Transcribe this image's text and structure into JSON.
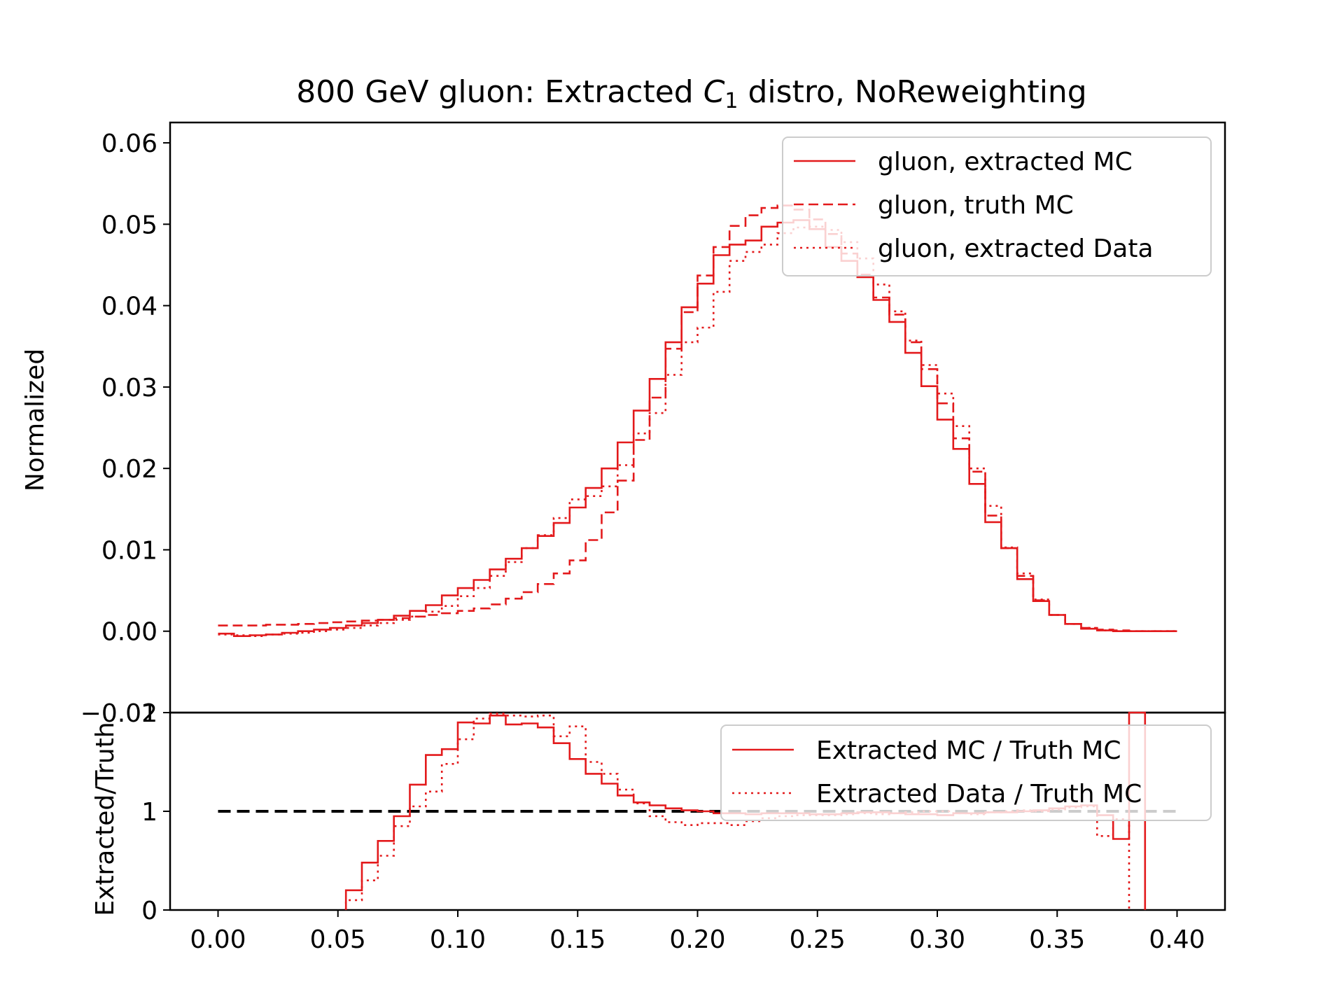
{
  "title_main": "800 GeV gluon: Extracted ",
  "title_var": "C",
  "title_sub": "1",
  "title_tail": " distro, NoReweighting",
  "colors": {
    "series": "#e31a1c",
    "reference": "#000000",
    "axes": "#000000"
  },
  "chart_data": [
    {
      "type": "line",
      "panel": "top",
      "ylabel": "Normalized",
      "xlim": [
        -0.02,
        0.42
      ],
      "ylim": [
        -0.01,
        0.0625
      ],
      "yticks": [
        "0.06",
        "0.05",
        "0.04",
        "0.03",
        "0.02",
        "0.01",
        "0.00",
        "−0.01"
      ],
      "ytick_values": [
        0.06,
        0.05,
        0.04,
        0.03,
        0.02,
        0.01,
        0.0,
        -0.01
      ],
      "grid": false,
      "legend_position": "top-right",
      "x_edges": [
        0.0,
        0.00667,
        0.01333,
        0.02,
        0.02667,
        0.03333,
        0.04,
        0.04667,
        0.05333,
        0.06,
        0.06667,
        0.07333,
        0.08,
        0.08667,
        0.09333,
        0.1,
        0.10667,
        0.11333,
        0.12,
        0.12667,
        0.13333,
        0.14,
        0.14667,
        0.15333,
        0.16,
        0.16667,
        0.17333,
        0.18,
        0.18667,
        0.19333,
        0.2,
        0.20667,
        0.21333,
        0.22,
        0.22667,
        0.23333,
        0.24,
        0.24667,
        0.25333,
        0.26,
        0.26667,
        0.27333,
        0.28,
        0.28667,
        0.29333,
        0.3,
        0.30667,
        0.31333,
        0.32,
        0.32667,
        0.33333,
        0.34,
        0.34667,
        0.35333,
        0.36,
        0.36667,
        0.37333,
        0.38,
        0.38667,
        0.39333,
        0.4
      ],
      "series": [
        {
          "name": "gluon, extracted MC",
          "style": "solid",
          "values": [
            -0.0003,
            -0.0006,
            -0.0005,
            -0.0004,
            -0.0002,
            0.0,
            0.0002,
            0.0004,
            0.0007,
            0.001,
            0.0014,
            0.0019,
            0.0025,
            0.0032,
            0.0044,
            0.0053,
            0.0063,
            0.0076,
            0.0089,
            0.0102,
            0.0117,
            0.0133,
            0.0152,
            0.0176,
            0.02,
            0.0232,
            0.0271,
            0.031,
            0.0355,
            0.0398,
            0.0427,
            0.0462,
            0.0475,
            0.048,
            0.0497,
            0.0502,
            0.0505,
            0.0494,
            0.0472,
            0.0455,
            0.0435,
            0.0407,
            0.038,
            0.0342,
            0.0301,
            0.026,
            0.0224,
            0.0181,
            0.0134,
            0.0102,
            0.0064,
            0.0037,
            0.002,
            0.0009,
            0.0003,
            0.0001,
            0.0,
            0.0,
            0.0,
            0.0
          ]
        },
        {
          "name": "gluon, truth MC",
          "style": "dashed",
          "values": [
            0.0007,
            0.0007,
            0.0007,
            0.0008,
            0.0008,
            0.0009,
            0.001,
            0.0011,
            0.0012,
            0.0013,
            0.0014,
            0.0016,
            0.0018,
            0.002,
            0.0022,
            0.0025,
            0.0028,
            0.0033,
            0.004,
            0.0048,
            0.0058,
            0.0071,
            0.0087,
            0.0112,
            0.0146,
            0.0185,
            0.0235,
            0.0287,
            0.0347,
            0.0392,
            0.0437,
            0.0472,
            0.0498,
            0.0511,
            0.052,
            0.0523,
            0.0518,
            0.0506,
            0.0488,
            0.0464,
            0.0438,
            0.041,
            0.0389,
            0.0355,
            0.0322,
            0.028,
            0.0237,
            0.0196,
            0.0142,
            0.0102,
            0.0068,
            0.0038,
            0.002,
            0.0009,
            0.0004,
            0.0002,
            0.0001,
            0.0,
            0.0,
            0.0
          ]
        },
        {
          "name": "gluon, extracted Data",
          "style": "dotted",
          "values": [
            -0.0004,
            -0.0005,
            -0.0006,
            -0.0004,
            -0.0003,
            -0.0002,
            0.0,
            0.0002,
            0.0004,
            0.0007,
            0.001,
            0.0014,
            0.0018,
            0.0024,
            0.0031,
            0.0043,
            0.0053,
            0.0068,
            0.0085,
            0.0102,
            0.0118,
            0.0139,
            0.0162,
            0.0166,
            0.0178,
            0.0204,
            0.0243,
            0.0268,
            0.0315,
            0.0355,
            0.0373,
            0.0417,
            0.0455,
            0.0466,
            0.0475,
            0.0489,
            0.0496,
            0.0497,
            0.0493,
            0.0478,
            0.0458,
            0.0426,
            0.0393,
            0.0357,
            0.0327,
            0.0292,
            0.0252,
            0.02,
            0.0154,
            0.0103,
            0.0071,
            0.0039,
            0.002,
            0.0009,
            0.0004,
            0.0001,
            0.0,
            0.0,
            0.0,
            0.0
          ]
        }
      ]
    },
    {
      "type": "line",
      "panel": "bottom",
      "ylabel": "Extracted/Truth",
      "xlim": [
        -0.02,
        0.42
      ],
      "ylim": [
        0,
        2
      ],
      "yticks": [
        "2",
        "1",
        "0"
      ],
      "ytick_values": [
        2,
        1,
        0
      ],
      "xticks": [
        "0.00",
        "0.05",
        "0.10",
        "0.15",
        "0.20",
        "0.25",
        "0.30",
        "0.35",
        "0.40"
      ],
      "xtick_values": [
        0.0,
        0.05,
        0.1,
        0.15,
        0.2,
        0.25,
        0.3,
        0.35,
        0.4
      ],
      "grid": false,
      "legend_position": "top-right",
      "reference_line": {
        "y": 1,
        "x_range": [
          0.0,
          0.4
        ],
        "style": "dashed"
      },
      "x_edges": [
        0.0,
        0.00667,
        0.01333,
        0.02,
        0.02667,
        0.03333,
        0.04,
        0.04667,
        0.05333,
        0.06,
        0.06667,
        0.07333,
        0.08,
        0.08667,
        0.09333,
        0.1,
        0.10667,
        0.11333,
        0.12,
        0.12667,
        0.13333,
        0.14,
        0.14667,
        0.15333,
        0.16,
        0.16667,
        0.17333,
        0.18,
        0.18667,
        0.19333,
        0.2,
        0.20667,
        0.21333,
        0.22,
        0.22667,
        0.23333,
        0.24,
        0.24667,
        0.25333,
        0.26,
        0.26667,
        0.27333,
        0.28,
        0.28667,
        0.29333,
        0.3,
        0.30667,
        0.31333,
        0.32,
        0.32667,
        0.33333,
        0.34,
        0.34667,
        0.35333,
        0.36,
        0.36667,
        0.37333,
        0.38,
        0.38667,
        0.39333,
        0.4
      ],
      "series": [
        {
          "name": "Extracted MC / Truth MC",
          "style": "solid",
          "start_x": 0.05333,
          "end_x": 0.38667,
          "x": [
            0.05333,
            0.06,
            0.06667,
            0.07333,
            0.08,
            0.08667,
            0.09333,
            0.1,
            0.10667,
            0.11333,
            0.12,
            0.12667,
            0.13333,
            0.14,
            0.14667,
            0.15333,
            0.16,
            0.16667,
            0.17333,
            0.18,
            0.18667,
            0.19333,
            0.2,
            0.20667,
            0.21333,
            0.22,
            0.22667,
            0.23333,
            0.24,
            0.24667,
            0.25333,
            0.26,
            0.26667,
            0.27333,
            0.28,
            0.28667,
            0.29333,
            0.3,
            0.30667,
            0.31333,
            0.32,
            0.32667,
            0.33333,
            0.34,
            0.34667,
            0.35333,
            0.36,
            0.36667,
            0.37333,
            0.38
          ],
          "values": [
            0.2,
            0.48,
            0.7,
            0.95,
            1.27,
            1.57,
            1.63,
            1.9,
            1.89,
            1.97,
            1.88,
            1.89,
            1.85,
            1.69,
            1.53,
            1.38,
            1.28,
            1.16,
            1.09,
            1.06,
            1.03,
            1.01,
            1.0,
            0.98,
            0.98,
            0.97,
            0.98,
            0.98,
            0.98,
            0.97,
            0.97,
            0.98,
            0.99,
            0.99,
            0.98,
            0.97,
            0.97,
            0.96,
            0.98,
            0.98,
            0.99,
            0.99,
            1.0,
            1.01,
            1.03,
            1.05,
            1.06,
            0.96,
            0.72,
            2.0
          ]
        },
        {
          "name": "Extracted Data / Truth MC",
          "style": "dotted",
          "start_x": 0.05333,
          "end_x": 0.38,
          "x": [
            0.05333,
            0.06,
            0.06667,
            0.07333,
            0.08,
            0.08667,
            0.09333,
            0.1,
            0.10667,
            0.11333,
            0.12,
            0.12667,
            0.13333,
            0.14,
            0.14667,
            0.15333,
            0.16,
            0.16667,
            0.17333,
            0.18,
            0.18667,
            0.19333,
            0.2,
            0.20667,
            0.21333,
            0.22,
            0.22667,
            0.23333,
            0.24,
            0.24667,
            0.25333,
            0.26,
            0.26667,
            0.27333,
            0.28,
            0.28667,
            0.29333,
            0.3,
            0.30667,
            0.31333,
            0.32,
            0.32667,
            0.33333,
            0.34,
            0.34667,
            0.35333,
            0.36,
            0.36667,
            0.37333
          ],
          "values": [
            0.1,
            0.3,
            0.55,
            0.85,
            1.05,
            1.2,
            1.48,
            1.73,
            1.94,
            1.99,
            1.97,
            1.96,
            1.97,
            1.76,
            1.86,
            1.5,
            1.38,
            1.22,
            1.08,
            0.95,
            0.89,
            0.86,
            0.88,
            0.88,
            0.86,
            0.9,
            0.93,
            0.95,
            0.96,
            0.96,
            0.96,
            0.97,
            0.98,
            0.97,
            0.98,
            0.99,
            1.0,
            1.0,
            0.98,
            0.97,
            0.99,
            1.0,
            1.01,
            1.0,
            1.02,
            1.04,
            1.05,
            0.75,
            0.92
          ]
        }
      ]
    }
  ]
}
